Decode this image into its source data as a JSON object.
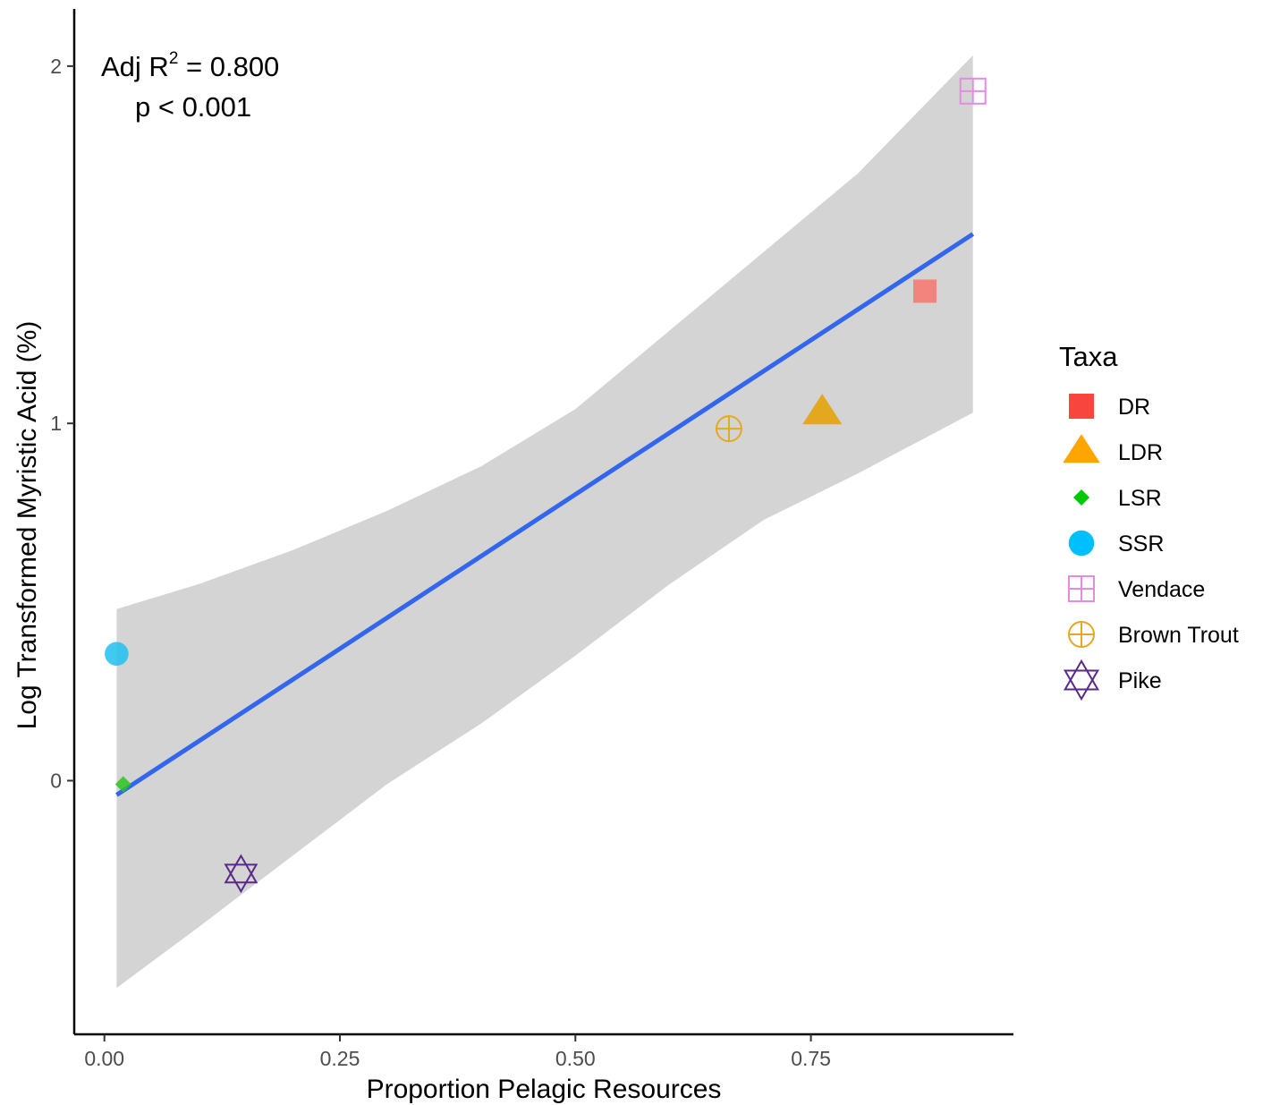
{
  "chart_data": {
    "type": "scatter",
    "title": "",
    "xlabel": "Proportion Pelagic Resources",
    "ylabel": "Log Transformed Myristic Acid (%)",
    "xlim": [
      -0.032,
      0.965
    ],
    "ylim": [
      -0.71,
      2.16
    ],
    "x_ticks": [
      0.0,
      0.25,
      0.5,
      0.75
    ],
    "x_tick_labels": [
      "0.00",
      "0.25",
      "0.50",
      "0.75"
    ],
    "y_ticks": [
      0,
      1,
      2
    ],
    "y_tick_labels": [
      "0",
      "1",
      "2"
    ],
    "grid": false,
    "legend": {
      "title": "Taxa",
      "position": "right"
    },
    "annotation": {
      "line1_prefix": "Adj R",
      "line1_sup": "2",
      "line1_suffix": " = 0.800",
      "line2": "p < 0.001"
    },
    "regression": {
      "x": [
        0.013,
        0.922
      ],
      "y": [
        -0.04,
        1.53
      ],
      "color": "#3366ee",
      "ci": [
        {
          "x": 0.013,
          "lower": -0.58,
          "upper": 0.48
        },
        {
          "x": 0.1,
          "lower": -0.41,
          "upper": 0.55
        },
        {
          "x": 0.2,
          "lower": -0.21,
          "upper": 0.645
        },
        {
          "x": 0.3,
          "lower": -0.01,
          "upper": 0.755
        },
        {
          "x": 0.4,
          "lower": 0.16,
          "upper": 0.88
        },
        {
          "x": 0.5,
          "lower": 0.35,
          "upper": 1.04
        },
        {
          "x": 0.6,
          "lower": 0.55,
          "upper": 1.26
        },
        {
          "x": 0.7,
          "lower": 0.73,
          "upper": 1.48
        },
        {
          "x": 0.8,
          "lower": 0.86,
          "upper": 1.7
        },
        {
          "x": 0.922,
          "lower": 1.03,
          "upper": 2.03
        }
      ],
      "ci_color": "#d4d4d4"
    },
    "series": [
      {
        "name": "DR",
        "shape": "square",
        "color": "#f8766d",
        "x": 0.871,
        "y": 1.37
      },
      {
        "name": "LDR",
        "shape": "triangle",
        "color": "#e69f00",
        "x": 0.762,
        "y": 1.03
      },
      {
        "name": "LSR",
        "shape": "diamond",
        "color": "#2ac420",
        "x": 0.02,
        "y": -0.01
      },
      {
        "name": "SSR",
        "shape": "circle",
        "color": "#1fbfef",
        "x": 0.013,
        "y": 0.355
      },
      {
        "name": "Vendace",
        "shape": "square-plus",
        "color": "#e48be4",
        "x": 0.922,
        "y": 1.93
      },
      {
        "name": "Brown Trout",
        "shape": "circle-plus",
        "color": "#e6a81e",
        "x": 0.663,
        "y": 0.985
      },
      {
        "name": "Pike",
        "shape": "hexagram",
        "color": "#5a2a8a",
        "x": 0.145,
        "y": -0.26
      }
    ],
    "legend_colors": {
      "DR": "#f8453d",
      "LDR": "#ffa500",
      "LSR": "#00c800",
      "SSR": "#00bfff",
      "Vendace": "#e48be4",
      "Brown Trout": "#e6a81e",
      "Pike": "#5a2a8a"
    }
  }
}
